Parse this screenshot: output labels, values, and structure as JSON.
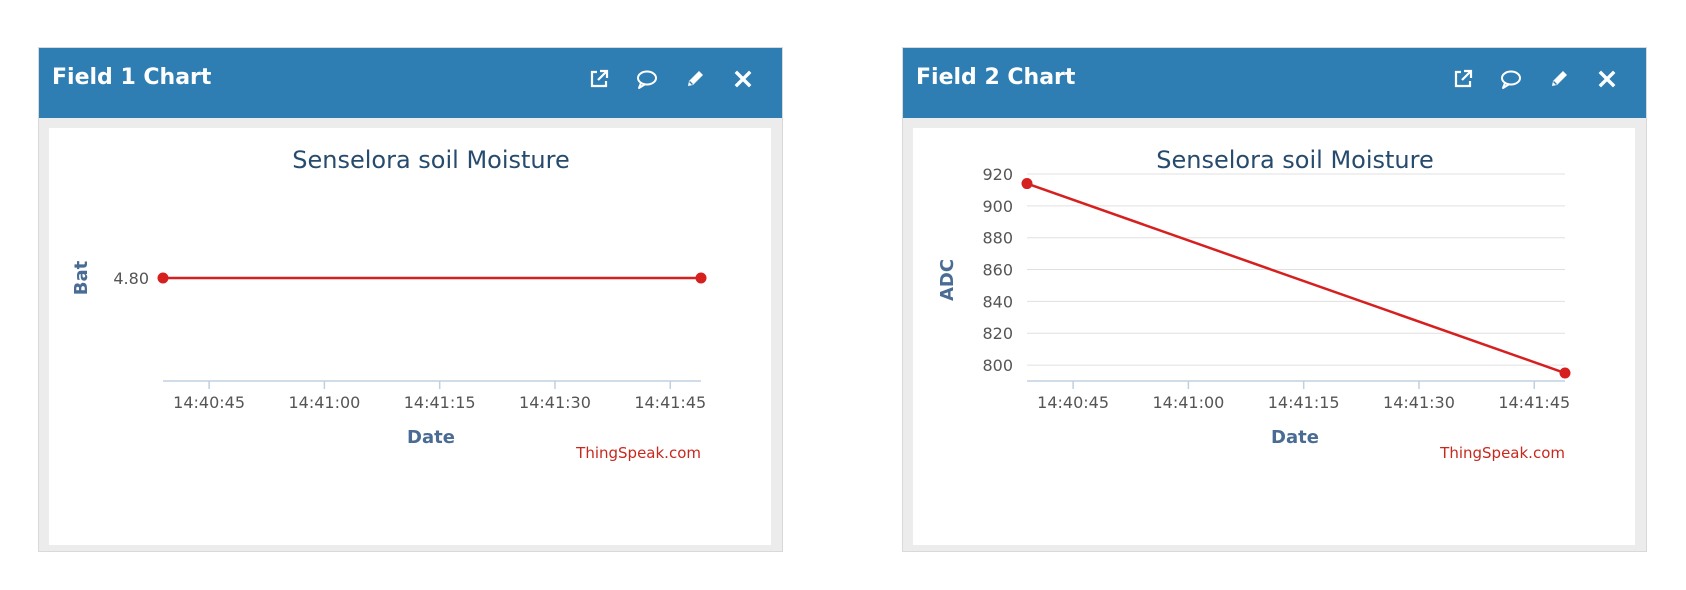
{
  "colors": {
    "header_bg": "#2e7eb3",
    "header_text": "#ffffff",
    "panel_bg": "#ececec",
    "series": "#d62020",
    "axis_title": "#4a6c94",
    "chart_title": "#274b6d",
    "credit": "#c8281e",
    "grid": "#e0e0e0",
    "axis_line": "#c0d0e0",
    "tick_label": "#555555"
  },
  "panels": [
    {
      "title": "Field 1 Chart",
      "icons": [
        "external-link-icon",
        "comment-icon",
        "pencil-icon",
        "close-icon"
      ]
    },
    {
      "title": "Field 2 Chart",
      "icons": [
        "external-link-icon",
        "comment-icon",
        "pencil-icon",
        "close-icon"
      ]
    }
  ],
  "chart_data": [
    {
      "type": "line",
      "title": "Senselora soil Moisture",
      "xlabel": "Date",
      "ylabel": "Bat",
      "credit": "ThingSpeak.com",
      "x_ticks": [
        "14:40:45",
        "14:41:00",
        "14:41:15",
        "14:41:30",
        "14:41:45"
      ],
      "y_ticks": [
        "4.80"
      ],
      "grid": false,
      "series": [
        {
          "x": [
            "14:40:39",
            "14:41:49"
          ],
          "y": [
            4.8,
            4.8
          ]
        }
      ]
    },
    {
      "type": "line",
      "title": "Senselora soil Moisture",
      "xlabel": "Date",
      "ylabel": "ADC",
      "credit": "ThingSpeak.com",
      "x_ticks": [
        "14:40:45",
        "14:41:00",
        "14:41:15",
        "14:41:30",
        "14:41:45"
      ],
      "y_ticks": [
        "800",
        "820",
        "840",
        "860",
        "880",
        "900",
        "920"
      ],
      "ylim": [
        790,
        920
      ],
      "grid": true,
      "series": [
        {
          "x": [
            "14:40:39",
            "14:41:49"
          ],
          "y": [
            914,
            795
          ]
        }
      ]
    }
  ]
}
